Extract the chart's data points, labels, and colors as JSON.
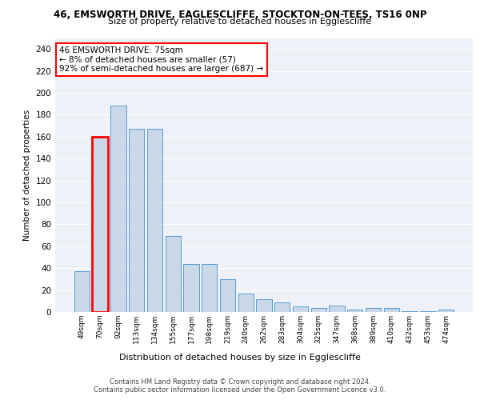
{
  "title1": "46, EMSWORTH DRIVE, EAGLESCLIFFE, STOCKTON-ON-TEES, TS16 0NP",
  "title2": "Size of property relative to detached houses in Egglescliffe",
  "xlabel": "Distribution of detached houses by size in Egglescliffe",
  "ylabel": "Number of detached properties",
  "categories": [
    "49sqm",
    "70sqm",
    "92sqm",
    "113sqm",
    "134sqm",
    "155sqm",
    "177sqm",
    "198sqm",
    "219sqm",
    "240sqm",
    "262sqm",
    "283sqm",
    "304sqm",
    "325sqm",
    "347sqm",
    "368sqm",
    "389sqm",
    "410sqm",
    "432sqm",
    "453sqm",
    "474sqm"
  ],
  "values": [
    37,
    160,
    188,
    167,
    167,
    69,
    44,
    44,
    30,
    17,
    12,
    9,
    5,
    4,
    6,
    2,
    4,
    4,
    1,
    1,
    2
  ],
  "bar_color": "#c8d8e8",
  "bar_edge_color": "#5b9bd5",
  "highlight_bar_index": 1,
  "highlight_edge_color": "#ff0000",
  "annotation_text": "46 EMSWORTH DRIVE: 75sqm\n← 8% of detached houses are smaller (57)\n92% of semi-detached houses are larger (687) →",
  "annotation_box_color": "#ffffff",
  "annotation_box_edge": "#ff0000",
  "ylim": [
    0,
    250
  ],
  "yticks": [
    0,
    20,
    40,
    60,
    80,
    100,
    120,
    140,
    160,
    180,
    200,
    220,
    240
  ],
  "bg_color": "#eef2f8",
  "footer1": "Contains HM Land Registry data © Crown copyright and database right 2024.",
  "footer2": "Contains public sector information licensed under the Open Government Licence v3.0."
}
